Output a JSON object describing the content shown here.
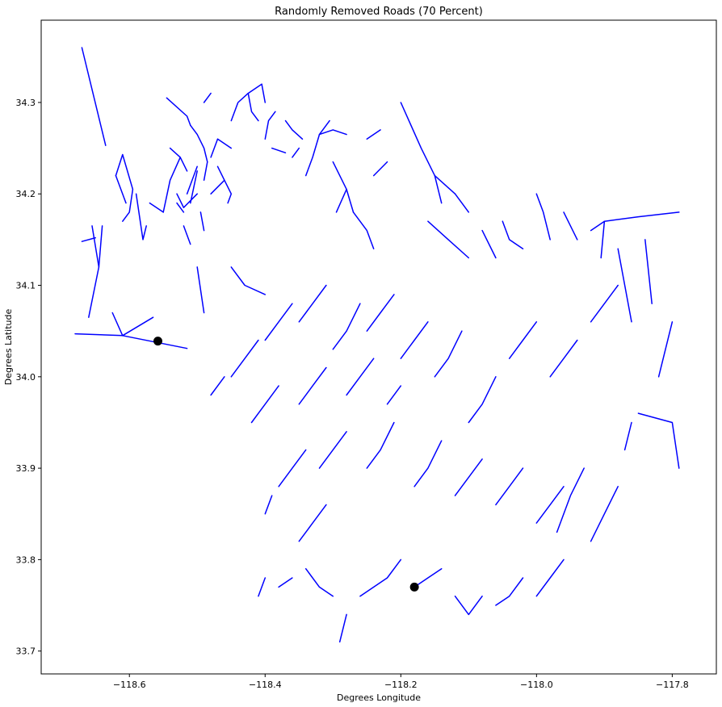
{
  "chart_data": {
    "type": "line",
    "title": "Randomly Removed Roads (70 Percent)",
    "xlabel": "Degrees Longitude",
    "ylabel": "Degrees Latitude",
    "xlim": [
      -118.73,
      -117.735
    ],
    "ylim": [
      33.675,
      34.39
    ],
    "xticks": [
      -118.6,
      -118.4,
      -118.2,
      -118.0,
      -117.8
    ],
    "xtick_labels": [
      "−118.6",
      "−118.4",
      "−118.2",
      "−118.0",
      "−117.8"
    ],
    "yticks": [
      33.7,
      33.8,
      33.9,
      34.0,
      34.1,
      34.2,
      34.3
    ],
    "ytick_labels": [
      "33.7",
      "33.8",
      "33.9",
      "34.0",
      "34.1",
      "34.2",
      "34.3"
    ],
    "grid": false,
    "road_color": "#0000ff",
    "marker_color": "#000000",
    "points": [
      {
        "x": -118.558,
        "y": 34.039
      },
      {
        "x": -118.18,
        "y": 33.77
      }
    ],
    "segments": [
      [
        [
          -118.67,
          34.36
        ],
        [
          -118.635,
          34.253
        ]
      ],
      [
        [
          -118.68,
          34.047
        ],
        [
          -118.61,
          34.045
        ],
        [
          -118.515,
          34.031
        ]
      ],
      [
        [
          -118.61,
          34.045
        ],
        [
          -118.565,
          34.065
        ]
      ],
      [
        [
          -118.61,
          34.045
        ],
        [
          -118.625,
          34.07
        ]
      ],
      [
        [
          -118.67,
          34.148
        ],
        [
          -118.65,
          34.152
        ]
      ],
      [
        [
          -118.655,
          34.165
        ],
        [
          -118.645,
          34.12
        ]
      ],
      [
        [
          -118.64,
          34.165
        ],
        [
          -118.645,
          34.12
        ],
        [
          -118.66,
          34.065
        ]
      ],
      [
        [
          -118.62,
          34.22
        ],
        [
          -118.61,
          34.243
        ],
        [
          -118.595,
          34.205
        ],
        [
          -118.6,
          34.18
        ],
        [
          -118.61,
          34.17
        ]
      ],
      [
        [
          -118.62,
          34.22
        ],
        [
          -118.605,
          34.19
        ]
      ],
      [
        [
          -118.59,
          34.2
        ],
        [
          -118.58,
          34.15
        ],
        [
          -118.575,
          34.165
        ]
      ],
      [
        [
          -118.57,
          34.19
        ],
        [
          -118.55,
          34.18
        ]
      ],
      [
        [
          -118.55,
          34.18
        ],
        [
          -118.54,
          34.215
        ],
        [
          -118.525,
          34.24
        ],
        [
          -118.515,
          34.225
        ]
      ],
      [
        [
          -118.54,
          34.25
        ],
        [
          -118.525,
          34.24
        ]
      ],
      [
        [
          -118.545,
          34.305
        ],
        [
          -118.515,
          34.285
        ],
        [
          -118.51,
          34.275
        ]
      ],
      [
        [
          -118.51,
          34.275
        ],
        [
          -118.5,
          34.265
        ],
        [
          -118.49,
          34.25
        ],
        [
          -118.485,
          34.235
        ]
      ],
      [
        [
          -118.49,
          34.215
        ],
        [
          -118.485,
          34.235
        ]
      ],
      [
        [
          -118.5,
          34.23
        ],
        [
          -118.515,
          34.2
        ]
      ],
      [
        [
          -118.5,
          34.225
        ],
        [
          -118.51,
          34.19
        ]
      ],
      [
        [
          -118.53,
          34.2
        ],
        [
          -118.52,
          34.185
        ],
        [
          -118.5,
          34.2
        ]
      ],
      [
        [
          -118.52,
          34.18
        ],
        [
          -118.53,
          34.19
        ]
      ],
      [
        [
          -118.52,
          34.165
        ],
        [
          -118.51,
          34.145
        ]
      ],
      [
        [
          -118.495,
          34.18
        ],
        [
          -118.49,
          34.16
        ]
      ],
      [
        [
          -118.48,
          34.2
        ],
        [
          -118.46,
          34.215
        ],
        [
          -118.47,
          34.23
        ]
      ],
      [
        [
          -118.46,
          34.215
        ],
        [
          -118.45,
          34.2
        ],
        [
          -118.455,
          34.19
        ]
      ],
      [
        [
          -118.48,
          34.24
        ],
        [
          -118.47,
          34.26
        ]
      ],
      [
        [
          -118.47,
          34.26
        ],
        [
          -118.45,
          34.25
        ]
      ],
      [
        [
          -118.49,
          34.3
        ],
        [
          -118.48,
          34.31
        ]
      ],
      [
        [
          -118.45,
          34.28
        ],
        [
          -118.44,
          34.3
        ],
        [
          -118.425,
          34.31
        ],
        [
          -118.405,
          34.32
        ]
      ],
      [
        [
          -118.425,
          34.31
        ],
        [
          -118.42,
          34.29
        ],
        [
          -118.41,
          34.28
        ]
      ],
      [
        [
          -118.405,
          34.32
        ],
        [
          -118.4,
          34.3
        ]
      ],
      [
        [
          -118.4,
          34.26
        ],
        [
          -118.395,
          34.28
        ],
        [
          -118.385,
          34.29
        ]
      ],
      [
        [
          -118.39,
          34.25
        ],
        [
          -118.37,
          34.245
        ]
      ],
      [
        [
          -118.37,
          34.28
        ],
        [
          -118.36,
          34.27
        ],
        [
          -118.345,
          34.26
        ]
      ],
      [
        [
          -118.36,
          34.24
        ],
        [
          -118.35,
          34.25
        ]
      ],
      [
        [
          -118.34,
          34.22
        ],
        [
          -118.33,
          34.24
        ],
        [
          -118.32,
          34.265
        ],
        [
          -118.305,
          34.28
        ]
      ],
      [
        [
          -118.32,
          34.265
        ],
        [
          -118.3,
          34.27
        ],
        [
          -118.28,
          34.265
        ]
      ],
      [
        [
          -118.3,
          34.235
        ],
        [
          -118.29,
          34.22
        ],
        [
          -118.28,
          34.205
        ],
        [
          -118.27,
          34.18
        ]
      ],
      [
        [
          -118.28,
          34.205
        ],
        [
          -118.295,
          34.18
        ]
      ],
      [
        [
          -118.25,
          34.26
        ],
        [
          -118.23,
          34.27
        ]
      ],
      [
        [
          -118.24,
          34.22
        ],
        [
          -118.22,
          34.235
        ]
      ],
      [
        [
          -118.27,
          34.18
        ],
        [
          -118.25,
          34.16
        ],
        [
          -118.24,
          34.14
        ]
      ],
      [
        [
          -118.2,
          34.3
        ],
        [
          -118.17,
          34.25
        ],
        [
          -118.15,
          34.22
        ],
        [
          -118.12,
          34.2
        ]
      ],
      [
        [
          -118.15,
          34.22
        ],
        [
          -118.14,
          34.19
        ]
      ],
      [
        [
          -118.12,
          34.2
        ],
        [
          -118.1,
          34.18
        ]
      ],
      [
        [
          -118.16,
          34.17
        ],
        [
          -118.13,
          34.15
        ],
        [
          -118.1,
          34.13
        ]
      ],
      [
        [
          -118.08,
          34.16
        ],
        [
          -118.06,
          34.13
        ]
      ],
      [
        [
          -118.05,
          34.17
        ],
        [
          -118.04,
          34.15
        ],
        [
          -118.02,
          34.14
        ]
      ],
      [
        [
          -118.0,
          34.2
        ],
        [
          -117.99,
          34.18
        ],
        [
          -117.98,
          34.15
        ]
      ],
      [
        [
          -117.96,
          34.18
        ],
        [
          -117.94,
          34.15
        ]
      ],
      [
        [
          -117.92,
          34.16
        ],
        [
          -117.9,
          34.17
        ],
        [
          -117.85,
          34.175
        ],
        [
          -117.79,
          34.18
        ]
      ],
      [
        [
          -117.9,
          34.17
        ],
        [
          -117.905,
          34.13
        ]
      ],
      [
        [
          -117.88,
          34.14
        ],
        [
          -117.87,
          34.1
        ],
        [
          -117.86,
          34.06
        ]
      ],
      [
        [
          -117.84,
          34.15
        ],
        [
          -117.83,
          34.08
        ]
      ],
      [
        [
          -117.8,
          34.06
        ],
        [
          -117.81,
          34.03
        ],
        [
          -117.82,
          34.0
        ]
      ],
      [
        [
          -117.85,
          33.96
        ],
        [
          -117.8,
          33.95
        ],
        [
          -117.79,
          33.9
        ]
      ],
      [
        [
          -117.86,
          33.95
        ],
        [
          -117.87,
          33.92
        ]
      ],
      [
        [
          -117.88,
          33.88
        ],
        [
          -117.9,
          33.85
        ],
        [
          -117.92,
          33.82
        ]
      ],
      [
        [
          -117.93,
          33.9
        ],
        [
          -117.95,
          33.87
        ],
        [
          -117.97,
          33.83
        ]
      ],
      [
        [
          -117.96,
          33.8
        ],
        [
          -117.98,
          33.78
        ],
        [
          -118.0,
          33.76
        ]
      ],
      [
        [
          -118.02,
          33.78
        ],
        [
          -118.04,
          33.76
        ],
        [
          -118.06,
          33.75
        ]
      ],
      [
        [
          -118.08,
          33.76
        ],
        [
          -118.1,
          33.74
        ],
        [
          -118.12,
          33.76
        ]
      ],
      [
        [
          -118.14,
          33.79
        ],
        [
          -118.16,
          33.78
        ],
        [
          -118.18,
          33.77
        ]
      ],
      [
        [
          -118.2,
          33.8
        ],
        [
          -118.22,
          33.78
        ],
        [
          -118.24,
          33.77
        ],
        [
          -118.26,
          33.76
        ]
      ],
      [
        [
          -118.28,
          33.74
        ],
        [
          -118.29,
          33.71
        ]
      ],
      [
        [
          -118.3,
          33.76
        ],
        [
          -118.32,
          33.77
        ],
        [
          -118.34,
          33.79
        ]
      ],
      [
        [
          -118.36,
          33.78
        ],
        [
          -118.38,
          33.77
        ]
      ],
      [
        [
          -118.4,
          33.78
        ],
        [
          -118.41,
          33.76
        ]
      ],
      [
        [
          -118.35,
          33.82
        ],
        [
          -118.33,
          33.84
        ],
        [
          -118.31,
          33.86
        ]
      ],
      [
        [
          -118.38,
          33.88
        ],
        [
          -118.36,
          33.9
        ],
        [
          -118.34,
          33.92
        ]
      ],
      [
        [
          -118.4,
          33.85
        ],
        [
          -118.39,
          33.87
        ]
      ],
      [
        [
          -118.32,
          33.9
        ],
        [
          -118.3,
          33.92
        ],
        [
          -118.28,
          33.94
        ]
      ],
      [
        [
          -118.25,
          33.9
        ],
        [
          -118.23,
          33.92
        ],
        [
          -118.21,
          33.95
        ]
      ],
      [
        [
          -118.18,
          33.88
        ],
        [
          -118.16,
          33.9
        ],
        [
          -118.14,
          33.93
        ]
      ],
      [
        [
          -118.12,
          33.87
        ],
        [
          -118.1,
          33.89
        ],
        [
          -118.08,
          33.91
        ]
      ],
      [
        [
          -118.06,
          33.86
        ],
        [
          -118.04,
          33.88
        ],
        [
          -118.02,
          33.9
        ]
      ],
      [
        [
          -118.0,
          33.84
        ],
        [
          -117.98,
          33.86
        ],
        [
          -117.96,
          33.88
        ]
      ],
      [
        [
          -118.1,
          33.95
        ],
        [
          -118.08,
          33.97
        ],
        [
          -118.06,
          34.0
        ]
      ],
      [
        [
          -118.04,
          34.02
        ],
        [
          -118.02,
          34.04
        ],
        [
          -118.0,
          34.06
        ]
      ],
      [
        [
          -117.98,
          34.0
        ],
        [
          -117.96,
          34.02
        ],
        [
          -117.94,
          34.04
        ]
      ],
      [
        [
          -117.92,
          34.06
        ],
        [
          -117.9,
          34.08
        ],
        [
          -117.88,
          34.1
        ]
      ],
      [
        [
          -118.15,
          34.0
        ],
        [
          -118.13,
          34.02
        ],
        [
          -118.11,
          34.05
        ]
      ],
      [
        [
          -118.2,
          34.02
        ],
        [
          -118.18,
          34.04
        ],
        [
          -118.16,
          34.06
        ]
      ],
      [
        [
          -118.25,
          34.05
        ],
        [
          -118.23,
          34.07
        ],
        [
          -118.21,
          34.09
        ]
      ],
      [
        [
          -118.3,
          34.03
        ],
        [
          -118.28,
          34.05
        ],
        [
          -118.26,
          34.08
        ]
      ],
      [
        [
          -118.35,
          34.06
        ],
        [
          -118.33,
          34.08
        ],
        [
          -118.31,
          34.1
        ]
      ],
      [
        [
          -118.4,
          34.04
        ],
        [
          -118.38,
          34.06
        ],
        [
          -118.36,
          34.08
        ]
      ],
      [
        [
          -118.45,
          34.0
        ],
        [
          -118.43,
          34.02
        ],
        [
          -118.41,
          34.04
        ]
      ],
      [
        [
          -118.48,
          33.98
        ],
        [
          -118.46,
          34.0
        ]
      ],
      [
        [
          -118.42,
          33.95
        ],
        [
          -118.4,
          33.97
        ],
        [
          -118.38,
          33.99
        ]
      ],
      [
        [
          -118.35,
          33.97
        ],
        [
          -118.33,
          33.99
        ],
        [
          -118.31,
          34.01
        ]
      ],
      [
        [
          -118.28,
          33.98
        ],
        [
          -118.26,
          34.0
        ],
        [
          -118.24,
          34.02
        ]
      ],
      [
        [
          -118.22,
          33.97
        ],
        [
          -118.2,
          33.99
        ]
      ],
      [
        [
          -118.45,
          34.12
        ],
        [
          -118.43,
          34.1
        ],
        [
          -118.4,
          34.09
        ]
      ],
      [
        [
          -118.5,
          34.12
        ],
        [
          -118.49,
          34.07
        ]
      ]
    ]
  }
}
